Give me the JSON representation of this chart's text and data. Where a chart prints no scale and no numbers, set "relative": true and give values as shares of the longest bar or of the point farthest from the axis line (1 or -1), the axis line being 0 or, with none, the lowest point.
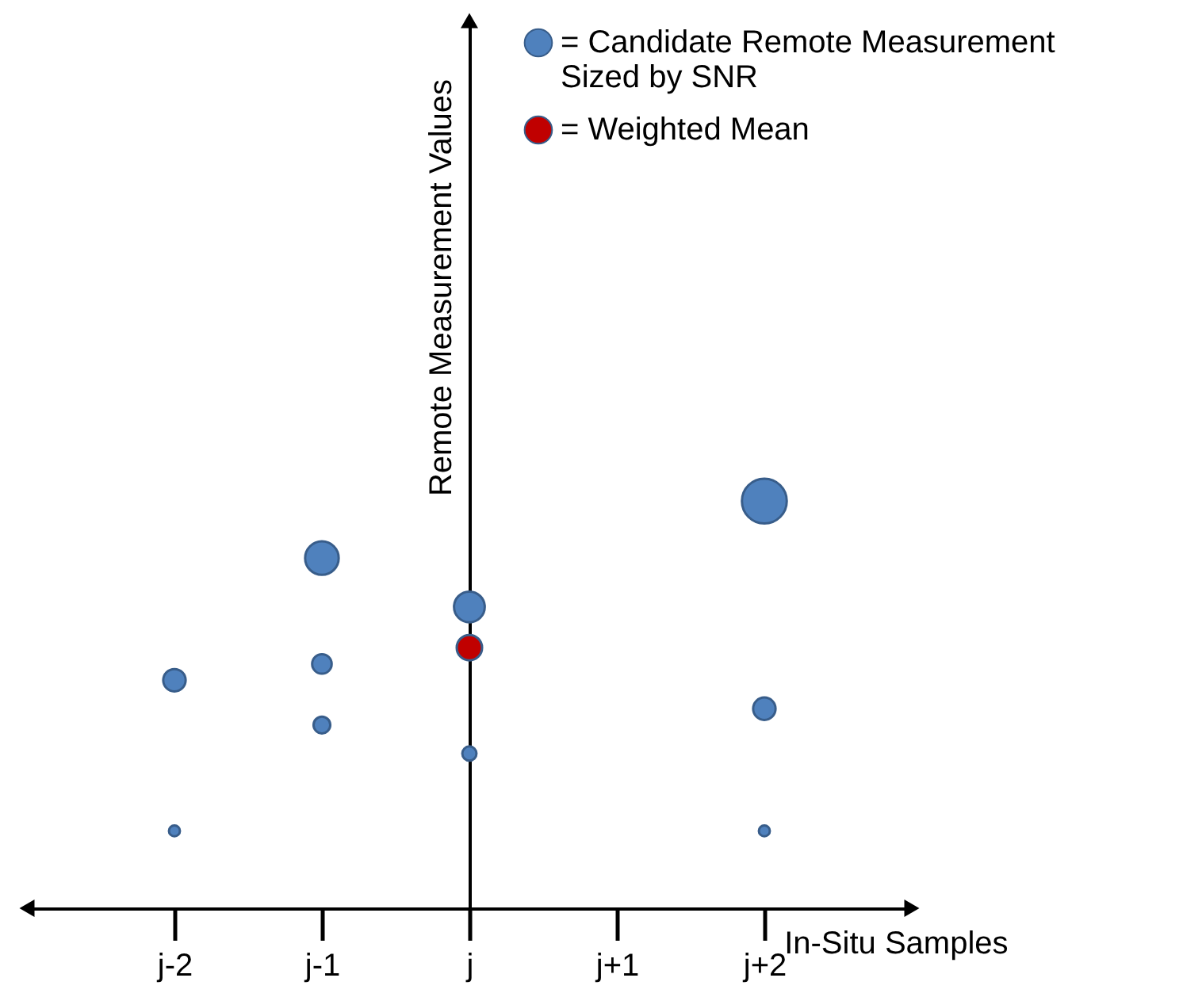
{
  "chart_data": {
    "type": "bubble",
    "categories": [
      "j-2",
      "j-1",
      "j",
      "j+1",
      "j+2"
    ],
    "relative": true,
    "xlabel": "In-Situ Samples",
    "ylabel": "Remote Measurement Values",
    "legend": "top right",
    "series": [
      {
        "name": "= Candidate Remote Measurement\nSized by SNR",
        "color": "#4f81bd",
        "x": [
          "j-2",
          "j-2",
          "j-1",
          "j-1",
          "j-1",
          "j",
          "j",
          "j+2",
          "j+2",
          "j+2"
        ],
        "values": [
          0.56,
          0.19,
          0.86,
          0.6,
          0.45,
          0.74,
          0.38,
          1,
          0.49,
          0.19
        ],
        "sizes": [
          0.25,
          0.06,
          0.56,
          0.19,
          0.14,
          0.47,
          0.1,
          1,
          0.25,
          0.06
        ]
      },
      {
        "name": "= Weighted Mean",
        "color": "#c00000",
        "x": [
          "j"
        ],
        "values": [
          0.64
        ],
        "sizes": [
          0.32
        ]
      }
    ]
  }
}
